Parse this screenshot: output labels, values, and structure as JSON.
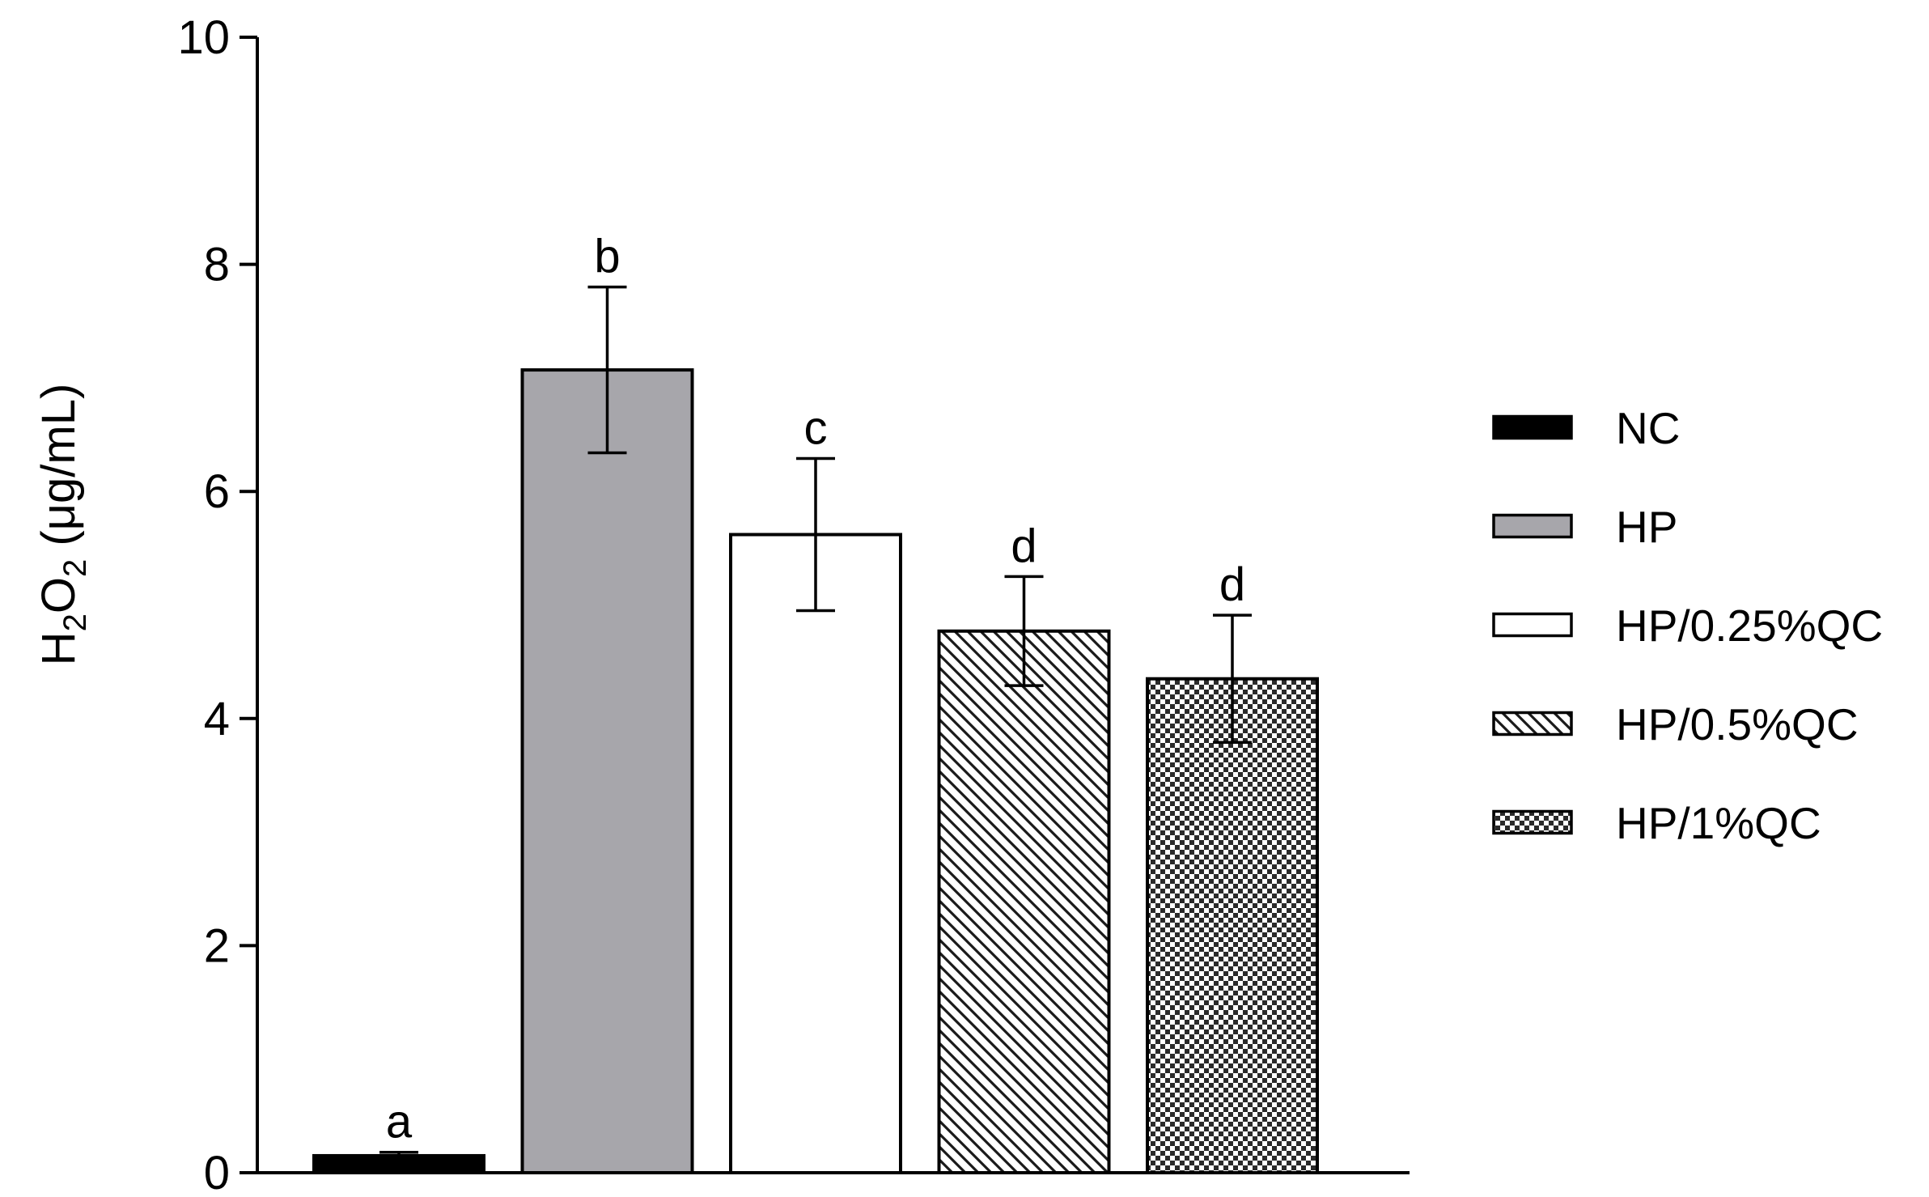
{
  "chart_data": {
    "type": "bar",
    "title": "",
    "ylabel": {
      "base": "H",
      "sub1": "2",
      "mid": "O",
      "sub2": "2",
      "rest": " (μg/mL)"
    },
    "xlabel": "",
    "ylim": [
      0,
      10
    ],
    "yticks": [
      "0",
      "2",
      "4",
      "6",
      "8",
      "10"
    ],
    "grid": false,
    "legend_position": "right",
    "series": [
      {
        "name": "NC",
        "value": 0.15,
        "error": 0.03,
        "letter": "a",
        "fill": "solid",
        "color": "#000000"
      },
      {
        "name": "HP",
        "value": 7.07,
        "error": 0.73,
        "letter": "b",
        "fill": "solid",
        "color": "#a7a6ab"
      },
      {
        "name": "HP/0.25%QC",
        "value": 5.62,
        "error": 0.67,
        "letter": "c",
        "fill": "solid",
        "color": "#ffffff"
      },
      {
        "name": "HP/0.5%QC",
        "value": 4.77,
        "error": 0.48,
        "letter": "d",
        "fill": "diagonal-hatch",
        "color": "#000000"
      },
      {
        "name": "HP/1%QC",
        "value": 4.35,
        "error": 0.56,
        "letter": "d",
        "fill": "checkerboard",
        "color": "#000000"
      }
    ]
  }
}
